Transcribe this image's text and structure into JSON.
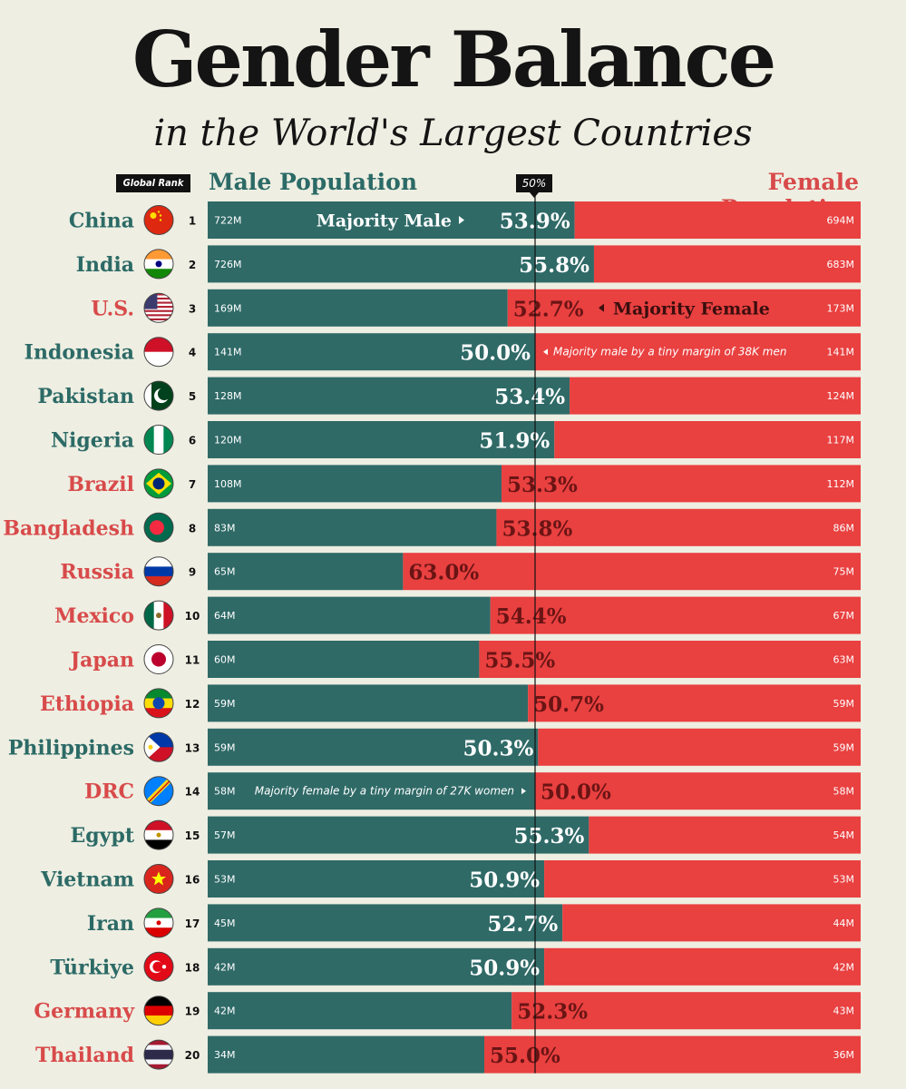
{
  "header": {
    "title": "Gender Balance",
    "subtitle": "in the World's Largest Countries",
    "rank_label": "Global Rank",
    "male_label": "Male Population",
    "female_label": "Female Population",
    "midline_label": "50%"
  },
  "annotations": {
    "china": "Majority Male",
    "us": "Majority Female",
    "indonesia": "Majority male by a tiny margin of 38K men",
    "drc": "Majority female by a tiny margin of 27K women"
  },
  "colors": {
    "male": "#2f6a67",
    "female": "#e94040",
    "male_text": "#2c6a66",
    "female_text": "#d84a4a"
  },
  "chart_data": {
    "type": "bar",
    "title": "Gender Balance in the World's Largest Countries",
    "xlabel": "Male Population",
    "ylabel": "Female Population",
    "ylim": [
      0,
      100
    ],
    "categories": [
      "China",
      "India",
      "U.S.",
      "Indonesia",
      "Pakistan",
      "Nigeria",
      "Brazil",
      "Bangladesh",
      "Russia",
      "Mexico",
      "Japan",
      "Ethiopia",
      "Philippines",
      "DRC",
      "Egypt",
      "Vietnam",
      "Iran",
      "Türkiye",
      "Germany",
      "Thailand"
    ],
    "rows": [
      {
        "country": "China",
        "rank": 1,
        "male": "722M",
        "female": "694M",
        "pct": "53.9%",
        "share": 53.9,
        "majority": "male"
      },
      {
        "country": "India",
        "rank": 2,
        "male": "726M",
        "female": "683M",
        "pct": "55.8%",
        "share": 55.8,
        "majority": "male"
      },
      {
        "country": "U.S.",
        "rank": 3,
        "male": "169M",
        "female": "173M",
        "pct": "52.7%",
        "share": 52.7,
        "majority": "female"
      },
      {
        "country": "Indonesia",
        "rank": 4,
        "male": "141M",
        "female": "141M",
        "pct": "50.0%",
        "share": 50.0,
        "majority": "male"
      },
      {
        "country": "Pakistan",
        "rank": 5,
        "male": "128M",
        "female": "124M",
        "pct": "53.4%",
        "share": 53.4,
        "majority": "male"
      },
      {
        "country": "Nigeria",
        "rank": 6,
        "male": "120M",
        "female": "117M",
        "pct": "51.9%",
        "share": 51.9,
        "majority": "male"
      },
      {
        "country": "Brazil",
        "rank": 7,
        "male": "108M",
        "female": "112M",
        "pct": "53.3%",
        "share": 53.3,
        "majority": "female"
      },
      {
        "country": "Bangladesh",
        "rank": 8,
        "male": "83M",
        "female": "86M",
        "pct": "53.8%",
        "share": 53.8,
        "majority": "female"
      },
      {
        "country": "Russia",
        "rank": 9,
        "male": "65M",
        "female": "75M",
        "pct": "63.0%",
        "share": 63.0,
        "majority": "female"
      },
      {
        "country": "Mexico",
        "rank": 10,
        "male": "64M",
        "female": "67M",
        "pct": "54.4%",
        "share": 54.4,
        "majority": "female"
      },
      {
        "country": "Japan",
        "rank": 11,
        "male": "60M",
        "female": "63M",
        "pct": "55.5%",
        "share": 55.5,
        "majority": "female"
      },
      {
        "country": "Ethiopia",
        "rank": 12,
        "male": "59M",
        "female": "59M",
        "pct": "50.7%",
        "share": 50.7,
        "majority": "female"
      },
      {
        "country": "Philippines",
        "rank": 13,
        "male": "59M",
        "female": "59M",
        "pct": "50.3%",
        "share": 50.3,
        "majority": "male"
      },
      {
        "country": "DRC",
        "rank": 14,
        "male": "58M",
        "female": "58M",
        "pct": "50.0%",
        "share": 50.0,
        "majority": "female"
      },
      {
        "country": "Egypt",
        "rank": 15,
        "male": "57M",
        "female": "54M",
        "pct": "55.3%",
        "share": 55.3,
        "majority": "male"
      },
      {
        "country": "Vietnam",
        "rank": 16,
        "male": "53M",
        "female": "53M",
        "pct": "50.9%",
        "share": 50.9,
        "majority": "male"
      },
      {
        "country": "Iran",
        "rank": 17,
        "male": "45M",
        "female": "44M",
        "pct": "52.7%",
        "share": 52.7,
        "majority": "male"
      },
      {
        "country": "Türkiye",
        "rank": 18,
        "male": "42M",
        "female": "42M",
        "pct": "50.9%",
        "share": 50.9,
        "majority": "male"
      },
      {
        "country": "Germany",
        "rank": 19,
        "male": "42M",
        "female": "43M",
        "pct": "52.3%",
        "share": 52.3,
        "majority": "female"
      },
      {
        "country": "Thailand",
        "rank": 20,
        "male": "34M",
        "female": "36M",
        "pct": "55.0%",
        "share": 55.0,
        "majority": "female"
      }
    ]
  }
}
